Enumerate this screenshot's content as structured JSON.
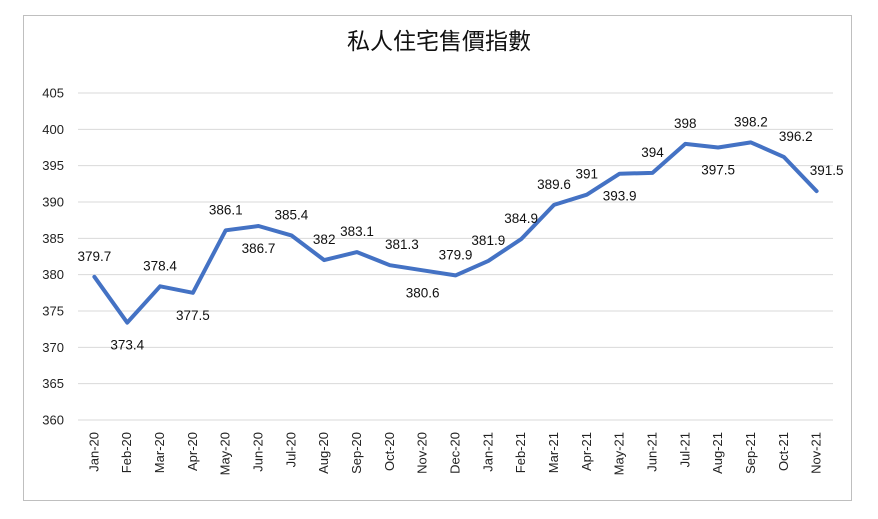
{
  "chart_data": {
    "type": "line",
    "title": "私人住宅售價指數",
    "xlabel": "",
    "ylabel": "",
    "ylim": [
      360,
      405
    ],
    "yticks": [
      360,
      365,
      370,
      375,
      380,
      385,
      390,
      395,
      400,
      405
    ],
    "grid": true,
    "legend": "none",
    "line_color": "#4472c4",
    "categories": [
      "Jan-20",
      "Feb-20",
      "Mar-20",
      "Apr-20",
      "May-20",
      "Jun-20",
      "Jul-20",
      "Aug-20",
      "Sep-20",
      "Oct-20",
      "Nov-20",
      "Dec-20",
      "Jan-21",
      "Feb-21",
      "Mar-21",
      "Apr-21",
      "May-21",
      "Jun-21",
      "Jul-21",
      "Aug-21",
      "Sep-21",
      "Oct-21",
      "Nov-21"
    ],
    "series": [
      {
        "values": [
          379.7,
          373.4,
          378.4,
          377.5,
          386.1,
          386.7,
          385.4,
          382,
          383.1,
          381.3,
          380.6,
          379.9,
          381.9,
          384.9,
          389.6,
          391,
          393.9,
          394,
          398,
          397.5,
          398.2,
          396.2,
          391.5
        ]
      }
    ],
    "data_labels": [
      "379.7",
      "373.4",
      "378.4",
      "377.5",
      "386.1",
      "386.7",
      "385.4",
      "382",
      "383.1",
      "381.3",
      "380.6",
      "379.9",
      "381.9",
      "384.9",
      "389.6",
      "391",
      "393.9",
      "394",
      "398",
      "397.5",
      "398.2",
      "396.2",
      "391.5"
    ]
  }
}
